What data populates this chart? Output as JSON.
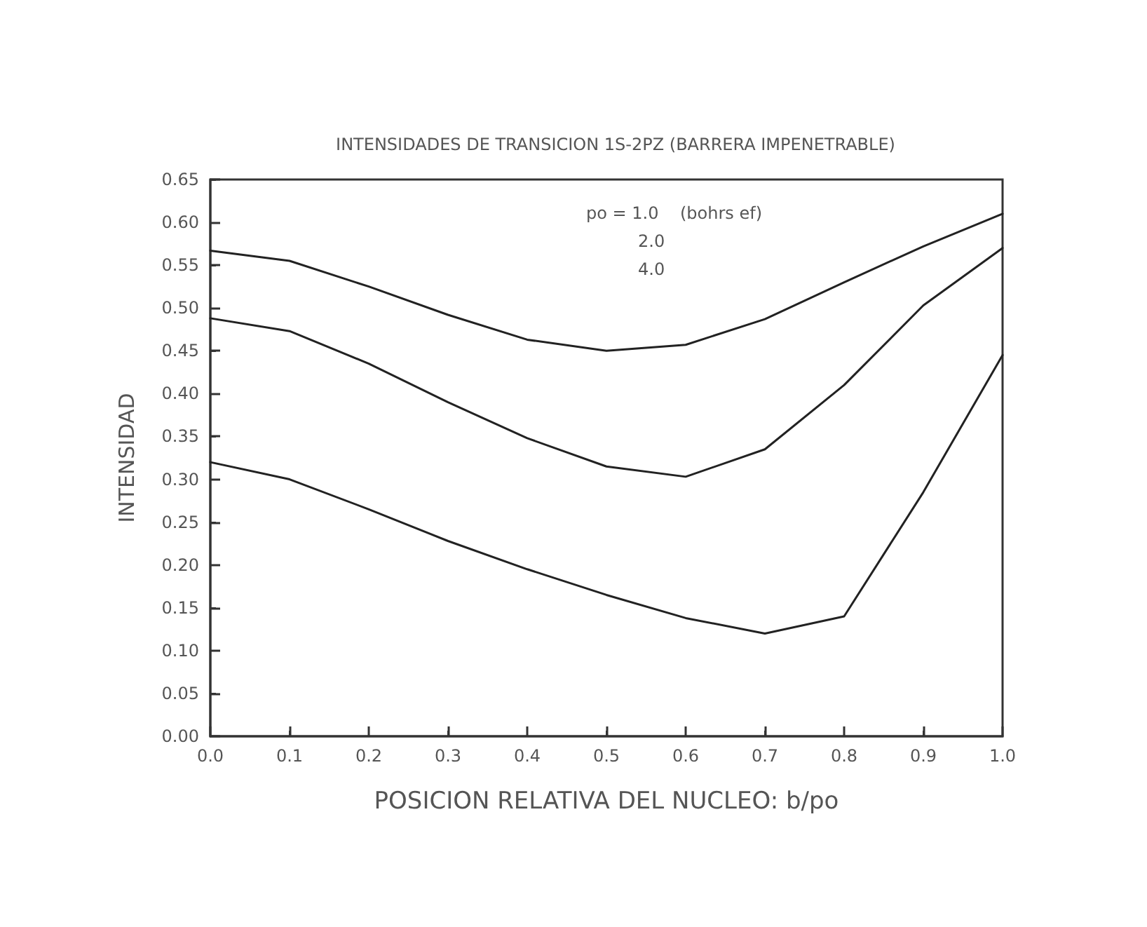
{
  "chart_data": {
    "type": "line",
    "title": "INTENSIDADES DE TRANSICION 1S-2PZ (BARRERA IMPENETRABLE)",
    "xlabel": "POSICION RELATIVA DEL NUCLEO: b/po",
    "ylabel": "INTENSIDAD",
    "x": [
      0.0,
      0.1,
      0.2,
      0.3,
      0.4,
      0.5,
      0.6,
      0.7,
      0.8,
      0.9,
      1.0
    ],
    "series": [
      {
        "color": "#222222",
        "values": [
          0.567,
          0.555,
          0.525,
          0.492,
          0.463,
          0.45,
          0.457,
          0.487,
          0.53,
          0.572,
          0.61
        ]
      },
      {
        "color": "#222222",
        "values": [
          0.488,
          0.473,
          0.435,
          0.39,
          0.348,
          0.315,
          0.303,
          0.335,
          0.41,
          0.503,
          0.57
        ]
      },
      {
        "color": "#222222",
        "values": [
          0.32,
          0.3,
          0.265,
          0.228,
          0.195,
          0.165,
          0.138,
          0.12,
          0.14,
          0.285,
          0.445
        ]
      }
    ],
    "xlim": [
      0,
      1
    ],
    "ylim": [
      0,
      0.65
    ],
    "xticks": [
      {
        "value": 0,
        "label": "0.0"
      },
      0.1,
      0.2,
      0.3,
      0.4,
      0.5,
      0.6,
      0.7,
      0.8,
      0.9,
      {
        "value": 1,
        "label": "1.0"
      }
    ],
    "yticks": [
      {
        "value": 0,
        "label": "0.00"
      },
      0.05,
      {
        "value": 0.1,
        "label": "0.10"
      },
      0.15,
      {
        "value": 0.2,
        "label": "0.20"
      },
      0.25,
      {
        "value": 0.3,
        "label": "0.30"
      },
      0.35,
      {
        "value": 0.4,
        "label": "0.40"
      },
      0.45,
      {
        "value": 0.5,
        "label": "0.50"
      },
      0.55,
      {
        "value": 0.6,
        "label": "0.60"
      },
      0.65
    ],
    "annotations": [
      "po = 1.0    (bohrs ef)",
      "2.0",
      "4.0"
    ],
    "grid": false,
    "marker": "none",
    "line_style": "solid"
  }
}
